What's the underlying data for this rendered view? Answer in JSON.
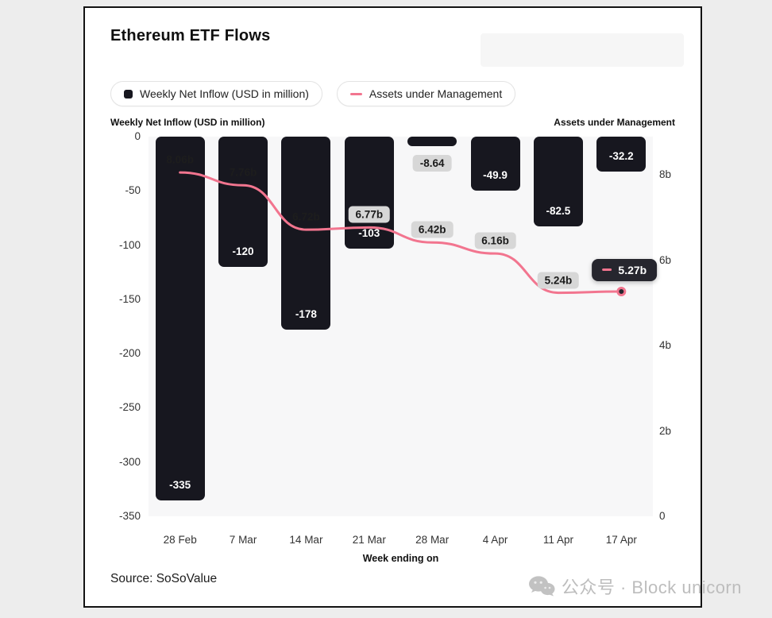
{
  "page": {
    "title": "Ethereum ETF Flows",
    "source": "Source: SoSoValue",
    "watermark": "公众号 · Block unicorn"
  },
  "legend": {
    "items": [
      {
        "label": "Weekly Net Inflow (USD in million)"
      },
      {
        "label": "Assets under Management"
      }
    ]
  },
  "axes": {
    "left_title": "Weekly Net Inflow (USD in million)",
    "right_title": "Assets under Management",
    "x_title": "Week ending on",
    "left_ticks": [
      "0",
      "-50",
      "-100",
      "-150",
      "-200",
      "-250",
      "-300",
      "-350"
    ],
    "right_ticks": [
      "8b",
      "6b",
      "4b",
      "2b",
      "0"
    ]
  },
  "colors": {
    "bar": "#17171f",
    "line": "#f2758f",
    "pill_bg": "#d7d7d7",
    "tooltip_bg": "#26262e"
  },
  "chart_data": {
    "type": "bar+line combo",
    "title": "Ethereum ETF Flows",
    "xlabel": "Week ending on",
    "grid": false,
    "legend_position": "top",
    "categories": [
      "28 Feb",
      "7 Mar",
      "14 Mar",
      "21 Mar",
      "28 Mar",
      "4 Apr",
      "11 Apr",
      "17 Apr"
    ],
    "series": [
      {
        "name": "Weekly Net Inflow (USD in million)",
        "type": "bar",
        "axis": "left",
        "values": [
          -335,
          -120,
          -178,
          -103,
          -8.64,
          -49.9,
          -82.5,
          -32.2
        ],
        "labels": [
          "-335",
          "-120",
          "-178",
          "-103",
          "-8.64",
          "-49.9",
          "-82.5",
          "-32.2"
        ]
      },
      {
        "name": "Assets under Management",
        "type": "line",
        "axis": "right",
        "unit": "billion USD",
        "values": [
          8.06,
          7.76,
          6.72,
          6.77,
          6.42,
          6.16,
          5.24,
          5.27
        ],
        "labels": [
          "8.06b",
          "7.76b",
          "6.72b",
          "6.77b",
          "6.42b",
          "6.16b",
          "5.24b",
          "5.27b"
        ]
      }
    ],
    "left_axis": {
      "min": -350,
      "max": 0,
      "ticks": [
        0,
        -50,
        -100,
        -150,
        -200,
        -250,
        -300,
        -350
      ]
    },
    "right_axis": {
      "min": 0,
      "max": 8.9,
      "ticks": [
        8,
        6,
        4,
        2,
        0
      ],
      "tick_labels": [
        "8b",
        "6b",
        "4b",
        "2b",
        "0"
      ]
    },
    "bar_label_placement": [
      "inside",
      "inside",
      "inside",
      "inside",
      "below",
      "inside",
      "inside",
      "inside"
    ],
    "aum_label_styles": [
      "plain",
      "plain",
      "plain",
      "pill",
      "pill",
      "pill",
      "pill",
      "tooltip"
    ],
    "highlight": {
      "category": "17 Apr",
      "label": "5.27b"
    }
  }
}
